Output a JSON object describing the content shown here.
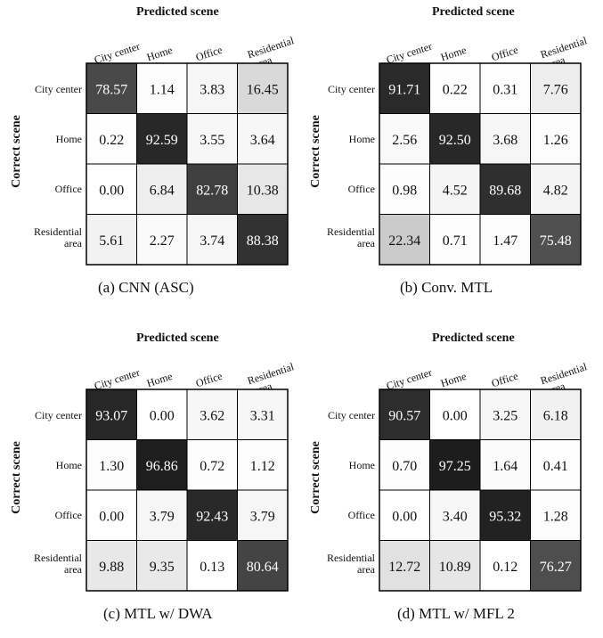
{
  "chart_data": [
    {
      "type": "heatmap",
      "title": "Predicted scene",
      "ylabel": "Correct scene",
      "caption": "(a)  CNN (ASC)",
      "x_categories": [
        "City center",
        "Home",
        "Office",
        "Residential area"
      ],
      "y_categories": [
        "City center",
        "Home",
        "Office",
        "Residential area"
      ],
      "values": [
        [
          78.57,
          1.14,
          3.83,
          16.45
        ],
        [
          0.22,
          92.59,
          3.55,
          3.64
        ],
        [
          0.0,
          6.84,
          82.78,
          10.38
        ],
        [
          5.61,
          2.27,
          3.74,
          88.38
        ]
      ],
      "labels": [
        [
          "78.57",
          "1.14",
          "3.83",
          "16.45"
        ],
        [
          "0.22",
          "92.59",
          "3.55",
          "3.64"
        ],
        [
          "0.00",
          "6.84",
          "82.78",
          "10.38"
        ],
        [
          "5.61",
          "2.27",
          "3.74",
          "88.38"
        ]
      ]
    },
    {
      "type": "heatmap",
      "title": "Predicted scene",
      "ylabel": "Correct scene",
      "caption": "(b)  Conv. MTL",
      "x_categories": [
        "City center",
        "Home",
        "Office",
        "Residential area"
      ],
      "y_categories": [
        "City center",
        "Home",
        "Office",
        "Residential area"
      ],
      "values": [
        [
          91.71,
          0.22,
          0.31,
          7.76
        ],
        [
          2.56,
          92.5,
          3.68,
          1.26
        ],
        [
          0.98,
          4.52,
          89.68,
          4.82
        ],
        [
          22.34,
          0.71,
          1.47,
          75.48
        ]
      ],
      "labels": [
        [
          "91.71",
          "0.22",
          "0.31",
          "7.76"
        ],
        [
          "2.56",
          "92.50",
          "3.68",
          "1.26"
        ],
        [
          "0.98",
          "4.52",
          "89.68",
          "4.82"
        ],
        [
          "22.34",
          "0.71",
          "1.47",
          "75.48"
        ]
      ]
    },
    {
      "type": "heatmap",
      "title": "Predicted scene",
      "ylabel": "Correct scene",
      "caption": "(c)  MTL w/ DWA",
      "x_categories": [
        "City center",
        "Home",
        "Office",
        "Residential area"
      ],
      "y_categories": [
        "City center",
        "Home",
        "Office",
        "Residential area"
      ],
      "values": [
        [
          93.07,
          0.0,
          3.62,
          3.31
        ],
        [
          1.3,
          96.86,
          0.72,
          1.12
        ],
        [
          0.0,
          3.79,
          92.43,
          3.79
        ],
        [
          9.88,
          9.35,
          0.13,
          80.64
        ]
      ],
      "labels": [
        [
          "93.07",
          "0.00",
          "3.62",
          "3.31"
        ],
        [
          "1.30",
          "96.86",
          "0.72",
          "1.12"
        ],
        [
          "0.00",
          "3.79",
          "92.43",
          "3.79"
        ],
        [
          "9.88",
          "9.35",
          "0.13",
          "80.64"
        ]
      ]
    },
    {
      "type": "heatmap",
      "title": "Predicted scene",
      "ylabel": "Correct scene",
      "caption": "(d)  MTL w/ MFL 2",
      "x_categories": [
        "City center",
        "Home",
        "Office",
        "Residential area"
      ],
      "y_categories": [
        "City center",
        "Home",
        "Office",
        "Residential area"
      ],
      "values": [
        [
          90.57,
          0.0,
          3.25,
          6.18
        ],
        [
          0.7,
          97.25,
          1.64,
          0.41
        ],
        [
          0.0,
          3.4,
          95.32,
          1.28
        ],
        [
          12.72,
          10.89,
          0.12,
          76.27
        ]
      ],
      "labels": [
        [
          "90.57",
          "0.00",
          "3.25",
          "6.18"
        ],
        [
          "0.70",
          "97.25",
          "1.64",
          "0.41"
        ],
        [
          "0.00",
          "3.40",
          "95.32",
          "1.28"
        ],
        [
          "12.72",
          "10.89",
          "0.12",
          "76.27"
        ]
      ]
    }
  ]
}
